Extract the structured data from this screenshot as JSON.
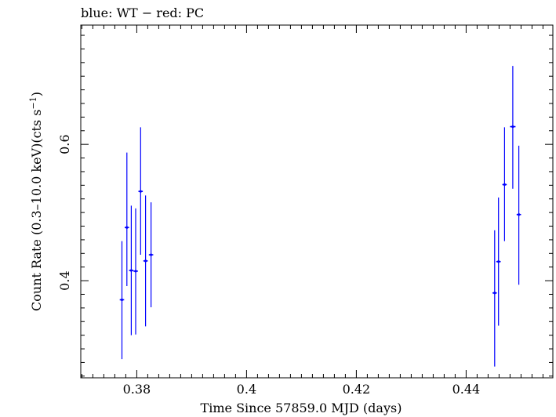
{
  "chart_data": {
    "type": "scatter",
    "title": "blue: WT − red: PC",
    "xlabel": "Time Since 57859.0 MJD (days)",
    "ylabel_main": "Count Rate (0.3–10.0 keV)(cts s",
    "ylabel_sup": "−1",
    "ylabel_tail": ")",
    "xlim": [
      0.3698,
      0.4558
    ],
    "ylim": [
      0.2575,
      0.775
    ],
    "x_ticks": [
      0.38,
      0.4,
      0.42,
      0.44
    ],
    "x_tick_labels": [
      "0.38",
      "0.4",
      "0.42",
      "0.44"
    ],
    "y_ticks": [
      0.4,
      0.6
    ],
    "y_tick_labels": [
      "0.4",
      "0.6"
    ],
    "grid": false,
    "series": [
      {
        "name": "WT",
        "color": "#0000ff",
        "points": [
          {
            "x": 0.3773,
            "y": 0.372,
            "yerr_lo": 0.087,
            "yerr_hi": 0.086,
            "xerr": 0.0004
          },
          {
            "x": 0.3782,
            "y": 0.478,
            "yerr_lo": 0.086,
            "yerr_hi": 0.11,
            "xerr": 0.0004
          },
          {
            "x": 0.379,
            "y": 0.415,
            "yerr_lo": 0.095,
            "yerr_hi": 0.095,
            "xerr": 0.0004
          },
          {
            "x": 0.3798,
            "y": 0.414,
            "yerr_lo": 0.093,
            "yerr_hi": 0.092,
            "xerr": 0.0004
          },
          {
            "x": 0.3807,
            "y": 0.531,
            "yerr_lo": 0.093,
            "yerr_hi": 0.094,
            "xerr": 0.0004
          },
          {
            "x": 0.3816,
            "y": 0.429,
            "yerr_lo": 0.096,
            "yerr_hi": 0.096,
            "xerr": 0.0004
          },
          {
            "x": 0.3826,
            "y": 0.438,
            "yerr_lo": 0.077,
            "yerr_hi": 0.077,
            "xerr": 0.0004
          },
          {
            "x": 0.4452,
            "y": 0.382,
            "yerr_lo": 0.108,
            "yerr_hi": 0.092,
            "xerr": 0.0004
          },
          {
            "x": 0.4459,
            "y": 0.428,
            "yerr_lo": 0.094,
            "yerr_hi": 0.094,
            "xerr": 0.0004
          },
          {
            "x": 0.447,
            "y": 0.541,
            "yerr_lo": 0.083,
            "yerr_hi": 0.084,
            "xerr": 0.0004
          },
          {
            "x": 0.4485,
            "y": 0.626,
            "yerr_lo": 0.091,
            "yerr_hi": 0.089,
            "xerr": 0.0005
          },
          {
            "x": 0.4496,
            "y": 0.497,
            "yerr_lo": 0.103,
            "yerr_hi": 0.101,
            "xerr": 0.0004
          }
        ]
      }
    ]
  }
}
